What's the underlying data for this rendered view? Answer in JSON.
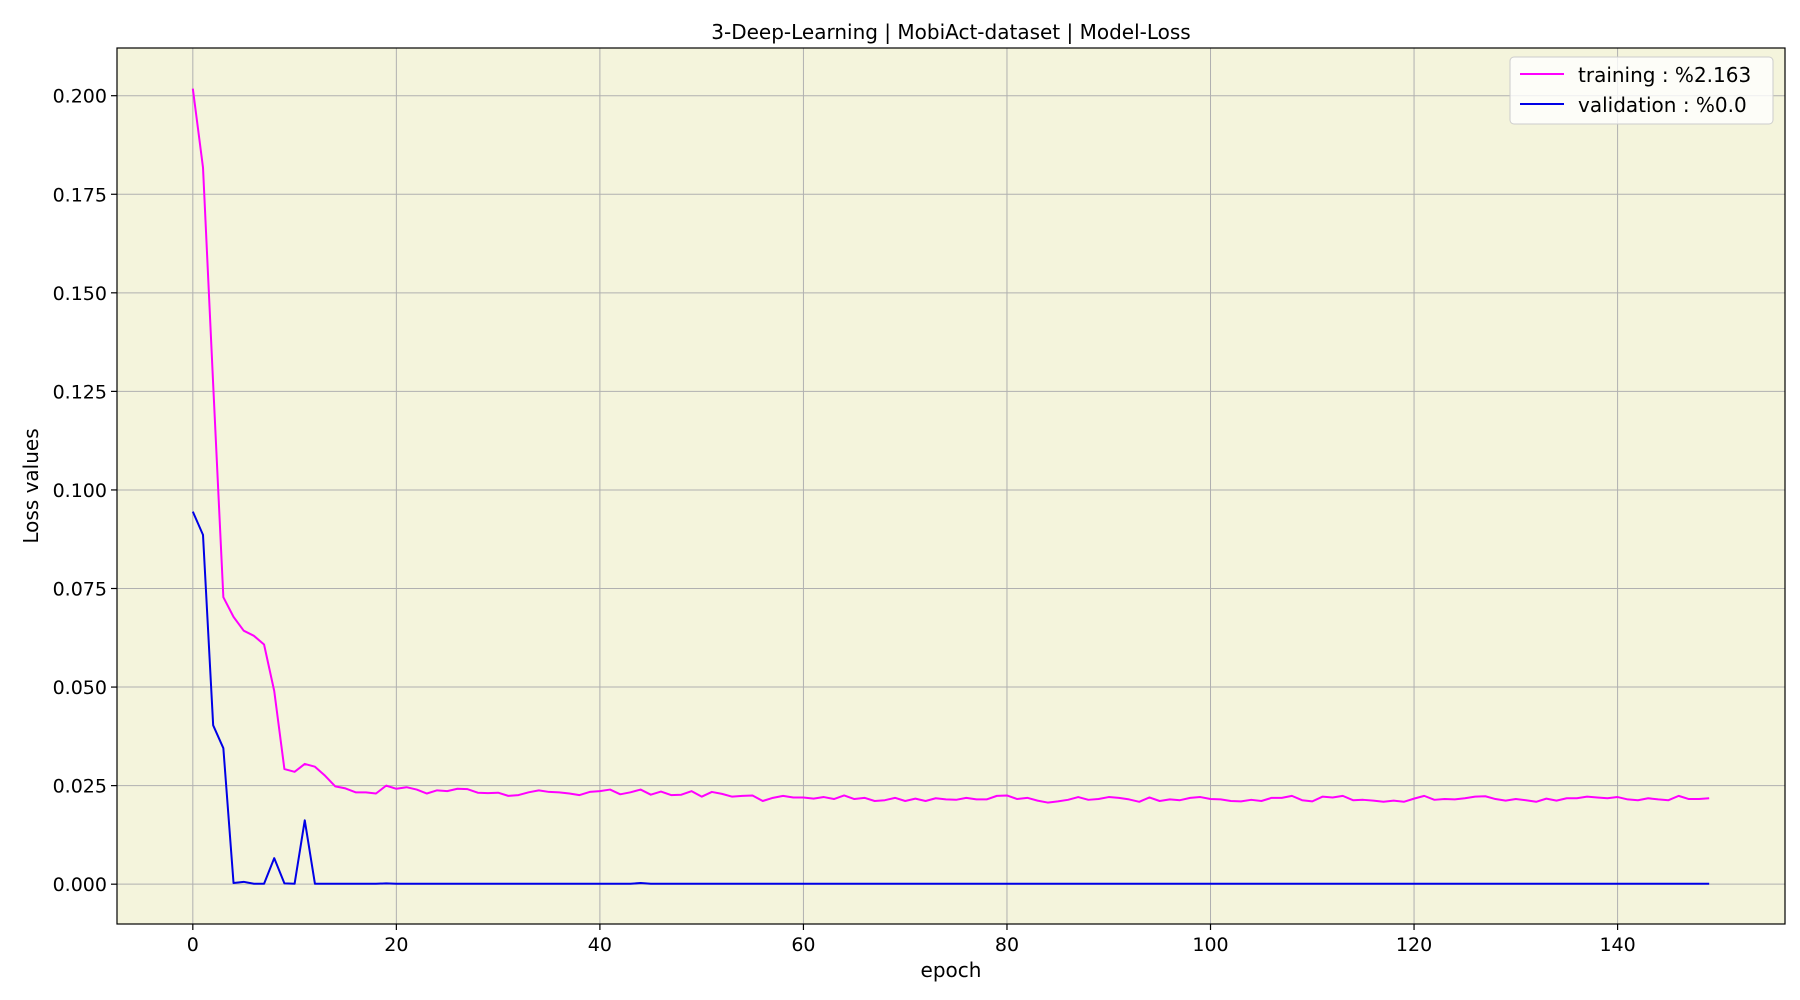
{
  "chart_data": {
    "type": "line",
    "title": "3-Deep-Learning | MobiAct-dataset  | Model-Loss",
    "xlabel": "epoch",
    "ylabel": "Loss values",
    "xlim": [
      -7.45,
      156.45
    ],
    "ylim": [
      -0.0101,
      0.2121
    ],
    "xticks": [
      0,
      20,
      40,
      60,
      80,
      100,
      120,
      140
    ],
    "yticks": [
      0.0,
      0.025,
      0.05,
      0.075,
      0.1,
      0.125,
      0.15,
      0.175,
      0.2
    ],
    "ytick_labels": [
      "0.000",
      "0.025",
      "0.050",
      "0.075",
      "0.100",
      "0.125",
      "0.150",
      "0.175",
      "0.200"
    ],
    "grid": true,
    "legend_position": "top-right",
    "background_color": "#f4f4dc",
    "series": [
      {
        "name": "training  : %2.163",
        "color": "#ff00ff",
        "x_start": 0,
        "values": [
          0.2018,
          0.1818,
          0.1268,
          0.0728,
          0.0678,
          0.0643,
          0.063,
          0.0608,
          0.049,
          0.0292,
          0.0285,
          0.0305,
          0.0298,
          0.0275,
          0.0248,
          0.0243,
          0.0233,
          0.0233,
          0.023,
          0.025,
          0.0242,
          0.0246,
          0.024,
          0.023,
          0.0238,
          0.0236,
          0.0242,
          0.0241,
          0.0232,
          0.0231,
          0.0232,
          0.0224,
          0.0226,
          0.0233,
          0.0238,
          0.0234,
          0.0233,
          0.023,
          0.0226,
          0.0234,
          0.0236,
          0.024,
          0.0228,
          0.0233,
          0.024,
          0.0227,
          0.0235,
          0.0226,
          0.0227,
          0.0236,
          0.0222,
          0.0234,
          0.0229,
          0.0222,
          0.0224,
          0.0225,
          0.0211,
          0.0219,
          0.0224,
          0.022,
          0.022,
          0.0217,
          0.0221,
          0.0216,
          0.0225,
          0.0216,
          0.0219,
          0.0211,
          0.0213,
          0.0219,
          0.0211,
          0.0217,
          0.0211,
          0.0218,
          0.0215,
          0.0214,
          0.0219,
          0.0215,
          0.0215,
          0.0224,
          0.0225,
          0.0216,
          0.0219,
          0.0212,
          0.0207,
          0.021,
          0.0214,
          0.0221,
          0.0214,
          0.0216,
          0.0221,
          0.0219,
          0.0215,
          0.0209,
          0.022,
          0.0211,
          0.0215,
          0.0213,
          0.0219,
          0.0221,
          0.0216,
          0.0215,
          0.0211,
          0.021,
          0.0214,
          0.0211,
          0.0219,
          0.0219,
          0.0224,
          0.0213,
          0.021,
          0.0222,
          0.022,
          0.0224,
          0.0213,
          0.0214,
          0.0212,
          0.0209,
          0.0212,
          0.0209,
          0.0217,
          0.0224,
          0.0214,
          0.0216,
          0.0215,
          0.0218,
          0.0222,
          0.0223,
          0.0216,
          0.0212,
          0.0216,
          0.0213,
          0.0209,
          0.0217,
          0.0212,
          0.0218,
          0.0218,
          0.0222,
          0.022,
          0.0218,
          0.0221,
          0.0215,
          0.0213,
          0.0218,
          0.0215,
          0.0213,
          0.0224,
          0.0216,
          0.0216,
          0.0218
        ]
      },
      {
        "name": "validation : %0.0",
        "color": "#0000e6",
        "x_start": 0,
        "values": [
          0.0945,
          0.0886,
          0.0403,
          0.0345,
          0.0003,
          0.0006,
          0.0001,
          0.0001,
          0.0066,
          0.0002,
          0.0001,
          0.0162,
          0.0001,
          0.0001,
          0.0001,
          0.0001,
          0.0001,
          0.0001,
          0.0001,
          0.0002,
          0.0001,
          0.0001,
          0.0001,
          0.0001,
          0.0001,
          0.0001,
          0.0001,
          0.0001,
          0.0001,
          0.0001,
          0.0001,
          0.0001,
          0.0001,
          0.0001,
          0.0001,
          0.0001,
          0.0001,
          0.0001,
          0.0001,
          0.0001,
          0.0001,
          0.0001,
          0.0001,
          0.0001,
          0.0003,
          0.0001,
          0.0001,
          0.0001,
          0.0001,
          0.0001,
          0.0001,
          0.0001,
          0.0001,
          0.0001,
          0.0001,
          0.0001,
          0.0001,
          0.0001,
          0.0001,
          0.0001,
          0.0001,
          0.0001,
          0.0001,
          0.0001,
          0.0001,
          0.0001,
          0.0001,
          0.0001,
          0.0001,
          0.0001,
          0.0001,
          0.0001,
          0.0001,
          0.0001,
          0.0001,
          0.0001,
          0.0001,
          0.0001,
          0.0001,
          0.0001,
          0.0001,
          0.0001,
          0.0001,
          0.0001,
          0.0001,
          0.0001,
          0.0001,
          0.0001,
          0.0001,
          0.0001,
          0.0001,
          0.0001,
          0.0001,
          0.0001,
          0.0001,
          0.0001,
          0.0001,
          0.0001,
          0.0001,
          0.0001,
          0.0001,
          0.0001,
          0.0001,
          0.0001,
          0.0001,
          0.0001,
          0.0001,
          0.0001,
          0.0001,
          0.0001,
          0.0001,
          0.0001,
          0.0001,
          0.0001,
          0.0001,
          0.0001,
          0.0001,
          0.0001,
          0.0001,
          0.0001,
          0.0001,
          0.0001,
          0.0001,
          0.0001,
          0.0001,
          0.0001,
          0.0001,
          0.0001,
          0.0001,
          0.0001,
          0.0001,
          0.0001,
          0.0001,
          0.0001,
          0.0001,
          0.0001,
          0.0001,
          0.0001,
          0.0001,
          0.0001,
          0.0001,
          0.0001,
          0.0001,
          0.0001,
          0.0001,
          0.0001,
          0.0001,
          0.0001,
          0.0001,
          0.0001
        ]
      }
    ]
  }
}
